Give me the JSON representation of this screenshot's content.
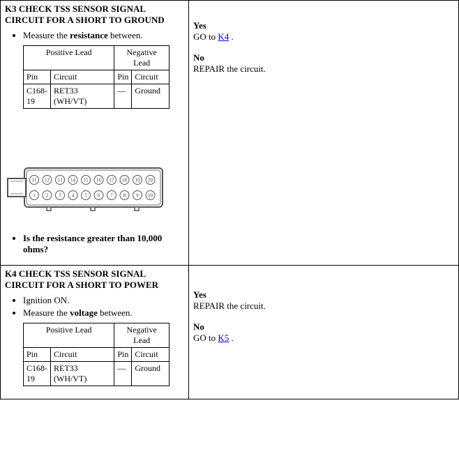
{
  "step_k3": {
    "title": "K3 CHECK TSS SENSOR SIGNAL CIRCUIT FOR A SHORT TO GROUND",
    "measure_intro_pre": "Measure the ",
    "measure_word": "resistance",
    "measure_intro_post": " between.",
    "table": {
      "pos_header": "Positive Lead",
      "neg_header": "Negative Lead",
      "pin_label": "Pin",
      "circuit_label": "Circuit",
      "pos_pin": "C168-19",
      "pos_circuit": "RET33 (WH/VT)",
      "neg_pin": "—",
      "neg_circuit": "Ground"
    },
    "question": "Is the resistance greater than 10,000 ohms?",
    "yes_label": "Yes",
    "yes_action_pre": "GO to ",
    "yes_link": "K4",
    "yes_action_post": " .",
    "no_label": "No",
    "no_action": "REPAIR the circuit.",
    "connector": {
      "pins_top": [
        "11",
        "12",
        "13",
        "14",
        "15",
        "16",
        "17",
        "18",
        "19",
        "20"
      ],
      "pins_bottom": [
        "1",
        "2",
        "3",
        "4",
        "5",
        "6",
        "7",
        "8",
        "9",
        "10"
      ]
    }
  },
  "step_k4": {
    "title": "K4 CHECK TSS SENSOR SIGNAL CIRCUIT FOR A SHORT TO POWER",
    "ignition": "Ignition ON.",
    "measure_intro_pre": "Measure the ",
    "measure_word": "voltage",
    "measure_intro_post": " between.",
    "table": {
      "pos_header": "Positive Lead",
      "neg_header": "Negative Lead",
      "pin_label": "Pin",
      "circuit_label": "Circuit",
      "pos_pin": "C168-19",
      "pos_circuit": "RET33 (WH/VT)",
      "neg_pin": "—",
      "neg_circuit": "Ground"
    },
    "yes_label": "Yes",
    "yes_action": "REPAIR the circuit.",
    "no_label": "No",
    "no_action_pre": "GO to ",
    "no_link": "K5",
    "no_action_post": " ."
  }
}
